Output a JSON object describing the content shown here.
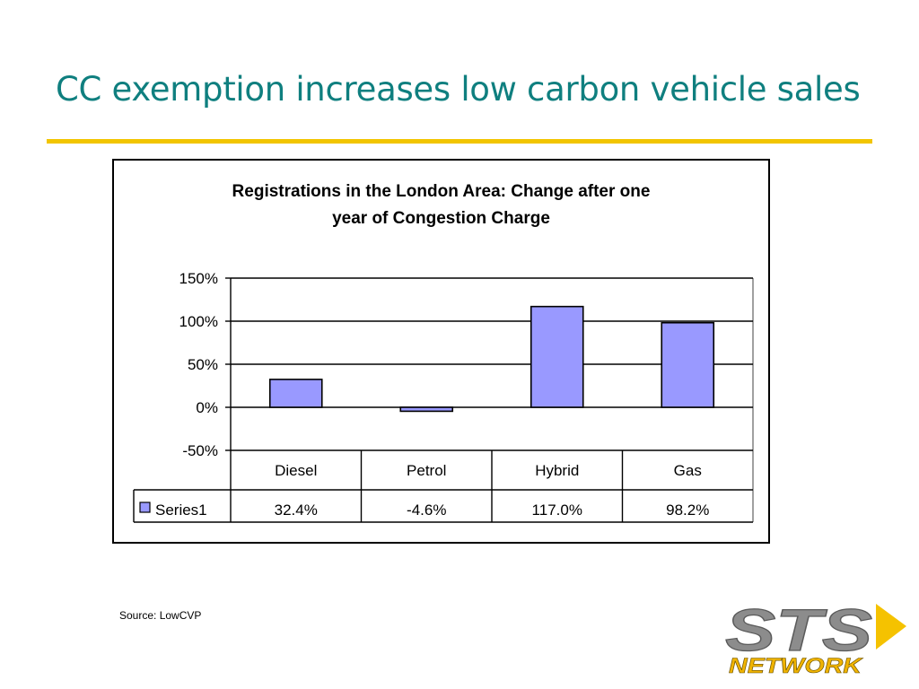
{
  "slide": {
    "title": "CC exemption increases low carbon vehicle sales",
    "source": "Source: LowCVP"
  },
  "logo": {
    "text_top": "STS",
    "text_bottom": "NETWORK",
    "colors": {
      "grey": "#8c8c8c",
      "yellow": "#f5c200",
      "bottom_text": "#f0b400"
    }
  },
  "colors": {
    "title": "#0f7f7f",
    "rule": "#f2c500",
    "bar": "#9999ff",
    "bar_border": "#000000"
  },
  "chart_data": {
    "type": "bar",
    "title": "Registrations in the London Area: Change after one\nyear of Congestion Charge",
    "categories": [
      "Diesel",
      "Petrol",
      "Hybrid",
      "Gas"
    ],
    "series": [
      {
        "name": "Series1",
        "values": [
          32.4,
          -4.6,
          117.0,
          98.2
        ]
      }
    ],
    "data_table": [
      "32.4%",
      "-4.6%",
      "117.0%",
      "98.2%"
    ],
    "ylim": [
      -50,
      150
    ],
    "yticks": [
      -50,
      0,
      50,
      100,
      150
    ],
    "ytick_labels": [
      "-50%",
      "0%",
      "50%",
      "100%",
      "150%"
    ],
    "grid": true,
    "legend": "data-table-left",
    "xlabel": "",
    "ylabel": ""
  }
}
